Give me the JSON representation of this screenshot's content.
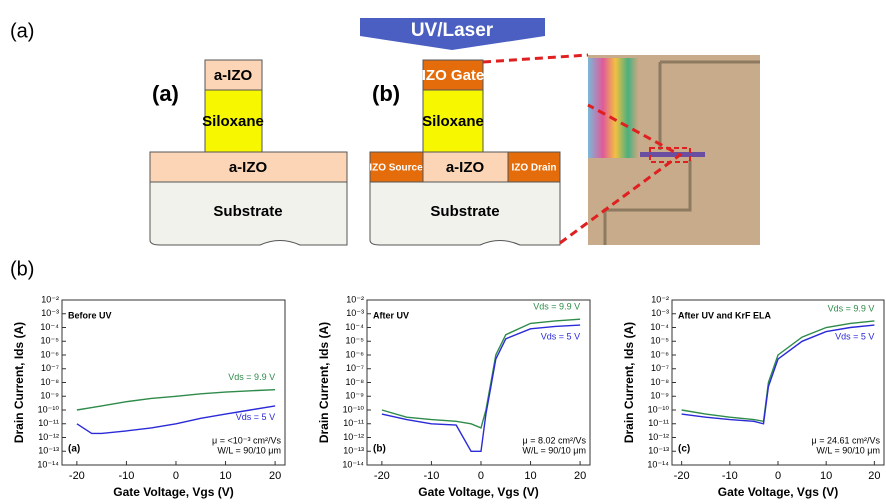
{
  "panel_labels": [
    "(a)",
    "(b)"
  ],
  "diagram": {
    "uv_label": "UV/Laser",
    "device_a": {
      "label": "(a)",
      "layers": [
        "a-IZO",
        "Siloxane",
        "a-IZO",
        "Substrate"
      ]
    },
    "device_b": {
      "label": "(b)",
      "layers": [
        "IZO Gate",
        "Siloxane",
        "IZO Source",
        "a-IZO",
        "IZO Drain",
        "Substrate"
      ]
    }
  },
  "chart_data": [
    {
      "type": "line",
      "title": "Before UV",
      "panel": "(a)",
      "x_label": "Gate Voltage, Vgs (V)",
      "y_label": "Drain Current, Ids (A)",
      "annotations": [
        "μ = <10⁻³ cm²/Vs",
        "W/L = 90/10 μm"
      ],
      "x": [
        -20,
        -17,
        -15,
        -10,
        -5,
        0,
        5,
        10,
        15,
        20
      ],
      "series": [
        {
          "name": "Vds = 9.9 V",
          "color": "#2e8b4a",
          "values": [
            1e-10,
            1.5e-10,
            2e-10,
            4e-10,
            7e-10,
            1e-09,
            1.5e-09,
            2e-09,
            2.5e-09,
            3e-09
          ]
        },
        {
          "name": "Vds = 5 V",
          "color": "#2a2ad8",
          "values": [
            1e-11,
            2e-12,
            2e-12,
            3e-12,
            5e-12,
            1e-11,
            2.5e-11,
            5e-11,
            1e-10,
            2e-10
          ]
        }
      ],
      "xlim": [
        -23,
        22
      ],
      "xticks": [
        -20,
        -10,
        0,
        10,
        20
      ],
      "ylim": [
        1e-14,
        0.01
      ],
      "log_y": true,
      "yticks": [
        {
          "value": 1e-14,
          "label": "10⁻¹⁴"
        },
        {
          "value": 1e-13,
          "label": "10⁻¹³"
        },
        {
          "value": 1e-12,
          "label": "10⁻¹²"
        },
        {
          "value": 1e-11,
          "label": "10⁻¹¹"
        },
        {
          "value": 1e-10,
          "label": "10⁻¹⁰"
        },
        {
          "value": 1e-09,
          "label": "10⁻⁹"
        },
        {
          "value": 1e-08,
          "label": "10⁻⁸"
        },
        {
          "value": 1e-07,
          "label": "10⁻⁷"
        },
        {
          "value": 1e-06,
          "label": "10⁻⁶"
        },
        {
          "value": 1e-05,
          "label": "10⁻⁵"
        },
        {
          "value": 0.0001,
          "label": "10⁻⁴"
        },
        {
          "value": 0.001,
          "label": "10⁻³"
        },
        {
          "value": 0.01,
          "label": "10⁻²"
        }
      ]
    },
    {
      "type": "line",
      "title": "After UV",
      "panel": "(b)",
      "x_label": "Gate Voltage, Vgs (V)",
      "y_label": "Drain Current, Ids (A)",
      "annotations": [
        "μ = 8.02 cm²/Vs",
        "W/L = 90/10 μm"
      ],
      "x": [
        -20,
        -15,
        -10,
        -5,
        -2,
        0,
        1,
        2,
        3,
        5,
        10,
        15,
        20
      ],
      "series": [
        {
          "name": "Vds = 9.9 V",
          "color": "#2e8b4a",
          "values": [
            1e-10,
            3e-11,
            2e-11,
            1.5e-11,
            1e-11,
            5e-12,
            1e-10,
            1e-08,
            1e-06,
            3e-05,
            0.0002,
            0.0003,
            0.0004
          ]
        },
        {
          "name": "Vds = 5 V",
          "color": "#2a2ad8",
          "values": [
            5e-11,
            2e-11,
            1e-11,
            8e-12,
            1e-13,
            1e-13,
            5e-11,
            5e-09,
            5e-07,
            1.5e-05,
            8e-05,
            0.00012,
            0.00015
          ]
        }
      ],
      "xlim": [
        -23,
        22
      ],
      "xticks": [
        -20,
        -10,
        0,
        10,
        20
      ],
      "ylim": [
        1e-14,
        0.01
      ],
      "log_y": true,
      "yticks": [
        {
          "value": 1e-14,
          "label": "10⁻¹⁴"
        },
        {
          "value": 1e-13,
          "label": "10⁻¹³"
        },
        {
          "value": 1e-12,
          "label": "10⁻¹²"
        },
        {
          "value": 1e-11,
          "label": "10⁻¹¹"
        },
        {
          "value": 1e-10,
          "label": "10⁻¹⁰"
        },
        {
          "value": 1e-09,
          "label": "10⁻⁹"
        },
        {
          "value": 1e-08,
          "label": "10⁻⁸"
        },
        {
          "value": 1e-07,
          "label": "10⁻⁷"
        },
        {
          "value": 1e-06,
          "label": "10⁻⁶"
        },
        {
          "value": 1e-05,
          "label": "10⁻⁵"
        },
        {
          "value": 0.0001,
          "label": "10⁻⁴"
        },
        {
          "value": 0.001,
          "label": "10⁻³"
        },
        {
          "value": 0.01,
          "label": "10⁻²"
        }
      ]
    },
    {
      "type": "line",
      "title": "After UV and KrF ELA",
      "panel": "(c)",
      "x_label": "Gate Voltage, Vgs (V)",
      "y_label": "Drain Current, Ids (A)",
      "annotations": [
        "μ = 24.61 cm²/Vs",
        "W/L = 90/10 μm"
      ],
      "x": [
        -20,
        -15,
        -10,
        -5,
        -3,
        -2,
        0,
        5,
        10,
        15,
        20
      ],
      "series": [
        {
          "name": "Vds = 9.9 V",
          "color": "#2e8b4a",
          "values": [
            1e-10,
            5e-11,
            3e-11,
            2e-11,
            1.5e-11,
            1e-08,
            1e-06,
            2e-05,
            0.0001,
            0.0002,
            0.0003
          ]
        },
        {
          "name": "Vds = 5 V",
          "color": "#2a2ad8",
          "values": [
            5e-11,
            3e-11,
            2e-11,
            1.5e-11,
            1e-11,
            5e-09,
            5e-07,
            1e-05,
            5e-05,
            0.0001,
            0.00015
          ]
        }
      ],
      "xlim": [
        -22,
        22
      ],
      "xticks": [
        -20,
        -10,
        0,
        10,
        20
      ],
      "ylim": [
        1e-14,
        0.01
      ],
      "log_y": true,
      "yticks": [
        {
          "value": 1e-14,
          "label": "10⁻¹⁴"
        },
        {
          "value": 1e-13,
          "label": "10⁻¹³"
        },
        {
          "value": 1e-12,
          "label": "10⁻¹²"
        },
        {
          "value": 1e-11,
          "label": "10⁻¹¹"
        },
        {
          "value": 1e-10,
          "label": "10⁻¹⁰"
        },
        {
          "value": 1e-09,
          "label": "10⁻⁹"
        },
        {
          "value": 1e-08,
          "label": "10⁻⁸"
        },
        {
          "value": 1e-07,
          "label": "10⁻⁷"
        },
        {
          "value": 1e-06,
          "label": "10⁻⁶"
        },
        {
          "value": 1e-05,
          "label": "10⁻⁵"
        },
        {
          "value": 0.0001,
          "label": "10⁻⁴"
        },
        {
          "value": 0.001,
          "label": "10⁻³"
        },
        {
          "value": 0.01,
          "label": "10⁻²"
        }
      ]
    }
  ]
}
